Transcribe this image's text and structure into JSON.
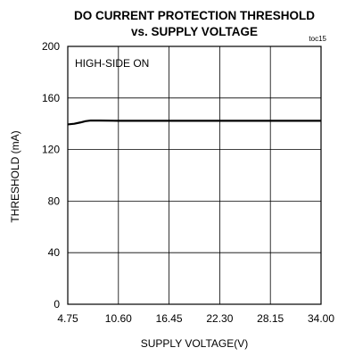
{
  "chart_data": {
    "type": "line",
    "title_line1": "DO CURRENT PROTECTION THRESHOLD",
    "title_line2": "vs. SUPPLY VOLTAGE",
    "figure_tag": "toc15",
    "xlabel": "SUPPLY VOLTAGE(V)",
    "ylabel": "THRESHOLD (mA)",
    "annotation": "HIGH-SIDE ON",
    "xlim": [
      4.75,
      34.0
    ],
    "ylim": [
      0,
      200
    ],
    "xticks": [
      "4.75",
      "10.60",
      "16.45",
      "22.30",
      "28.15",
      "34.00"
    ],
    "yticks": [
      "0",
      "40",
      "80",
      "120",
      "160",
      "200"
    ],
    "grid": true,
    "series": [
      {
        "x": [
          4.75,
          5.5,
          6.2,
          6.8,
          7.4,
          8.5,
          10.6,
          16.45,
          22.3,
          28.15,
          34.0
        ],
        "y": [
          139.5,
          140,
          141,
          142,
          142.5,
          142.5,
          142.3,
          142.3,
          142.3,
          142.3,
          142.3
        ]
      }
    ]
  }
}
